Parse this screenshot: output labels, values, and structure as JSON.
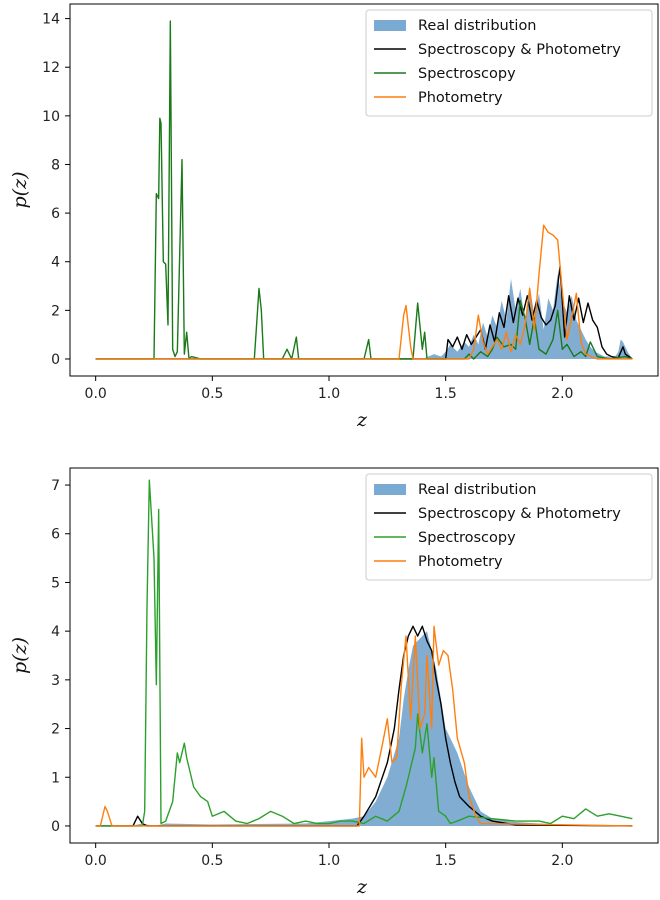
{
  "chart_data": [
    {
      "type": "line",
      "title": "",
      "xlabel": "z",
      "ylabel": "p(z)",
      "xlim": [
        -0.11,
        2.41
      ],
      "ylim": [
        -0.7,
        14.6
      ],
      "xticks": [
        0.0,
        0.5,
        1.0,
        1.5,
        2.0
      ],
      "xtick_labels": [
        "0.0",
        "0.5",
        "1.0",
        "1.5",
        "2.0"
      ],
      "yticks": [
        0,
        2,
        4,
        6,
        8,
        10,
        12,
        14
      ],
      "ytick_labels": [
        "0",
        "2",
        "4",
        "6",
        "8",
        "10",
        "12",
        "14"
      ],
      "grid": false,
      "legend_position": "top-right",
      "series": [
        {
          "name": "Real distribution",
          "kind": "fill",
          "color": "#7aa9d1",
          "x": [
            0,
            1.4,
            1.45,
            1.48,
            1.5,
            1.52,
            1.55,
            1.58,
            1.6,
            1.62,
            1.64,
            1.66,
            1.68,
            1.7,
            1.72,
            1.74,
            1.76,
            1.78,
            1.8,
            1.82,
            1.84,
            1.86,
            1.88,
            1.9,
            1.92,
            1.94,
            1.96,
            1.98,
            2.0,
            2.02,
            2.04,
            2.06,
            2.08,
            2.1,
            2.12,
            2.14,
            2.16,
            2.18,
            2.2,
            2.22,
            2.24,
            2.25,
            2.26,
            2.28,
            2.3
          ],
          "y": [
            0,
            0,
            0.2,
            0.1,
            0.3,
            0.6,
            0.3,
            0.7,
            0.5,
            1.0,
            0.6,
            1.5,
            0.9,
            1.8,
            1.3,
            2.4,
            1.6,
            3.3,
            2.0,
            2.9,
            1.5,
            3.0,
            1.8,
            2.7,
            1.2,
            2.5,
            2.0,
            3.5,
            2.4,
            1.9,
            2.6,
            1.6,
            1.2,
            0.8,
            0.5,
            0.3,
            0.2,
            0.1,
            0.1,
            0.0,
            0.3,
            0.8,
            0.7,
            0.3,
            0
          ]
        },
        {
          "name": "Spectroscopy & Photometry",
          "kind": "line",
          "color": "#000000",
          "x": [
            0,
            1.5,
            1.51,
            1.53,
            1.55,
            1.57,
            1.59,
            1.61,
            1.63,
            1.65,
            1.67,
            1.69,
            1.71,
            1.73,
            1.75,
            1.77,
            1.79,
            1.81,
            1.83,
            1.85,
            1.87,
            1.89,
            1.91,
            1.93,
            1.95,
            1.97,
            1.99,
            2.01,
            2.03,
            2.05,
            2.07,
            2.09,
            2.11,
            2.13,
            2.15,
            2.17,
            2.19,
            2.21,
            2.24,
            2.26,
            2.27,
            2.3
          ],
          "y": [
            0,
            0,
            0.8,
            0.5,
            0.9,
            0.4,
            1.0,
            0.6,
            0.9,
            1.2,
            0.4,
            1.4,
            0.7,
            1.9,
            1.3,
            2.6,
            1.5,
            2.5,
            1.8,
            2.6,
            1.6,
            2.4,
            1.7,
            1.4,
            1.6,
            2.2,
            3.8,
            0.9,
            2.6,
            1.6,
            2.5,
            1.5,
            2.3,
            1.6,
            1.3,
            0.5,
            0.2,
            0.1,
            0.05,
            0.5,
            0.2,
            0
          ]
        },
        {
          "name": "Spectroscopy",
          "kind": "line",
          "color": "#1a7a1a",
          "x": [
            0,
            0.25,
            0.26,
            0.27,
            0.275,
            0.28,
            0.29,
            0.3,
            0.31,
            0.32,
            0.33,
            0.34,
            0.35,
            0.37,
            0.38,
            0.39,
            0.4,
            0.41,
            0.45,
            0.68,
            0.7,
            0.71,
            0.72,
            0.8,
            0.82,
            0.84,
            0.86,
            0.87,
            0.88,
            1.15,
            1.17,
            1.18,
            1.36,
            1.38,
            1.4,
            1.41,
            1.42,
            1.45,
            1.58,
            1.6,
            1.62,
            1.65,
            1.68,
            1.7,
            1.72,
            1.75,
            1.78,
            1.8,
            1.82,
            1.84,
            1.86,
            1.88,
            1.9,
            1.93,
            1.96,
            1.98,
            2.0,
            2.02,
            2.05,
            2.08,
            2.1,
            2.12,
            2.15,
            2.2,
            2.27,
            2.3
          ],
          "y": [
            0,
            0,
            6.8,
            6.6,
            9.9,
            9.7,
            4.0,
            3.9,
            1.4,
            13.9,
            0.4,
            0.1,
            0.3,
            8.2,
            0.2,
            1.1,
            0,
            0.1,
            0,
            0,
            2.9,
            2.0,
            0,
            0,
            0.4,
            0,
            0.9,
            0,
            0,
            0,
            0.8,
            0,
            0,
            2.3,
            0.4,
            1.1,
            0,
            0,
            0,
            0.2,
            0,
            0.3,
            0.1,
            0.4,
            0.9,
            0.5,
            0.6,
            0.4,
            2.4,
            1.7,
            0.6,
            1.7,
            0.4,
            0.2,
            0.8,
            2.0,
            0.4,
            0.6,
            0.1,
            0.3,
            0.1,
            0.7,
            0.1,
            0,
            0.1,
            0
          ]
        },
        {
          "name": "Photometry",
          "kind": "line",
          "color": "#ff7f0e",
          "x": [
            0,
            1.3,
            1.32,
            1.33,
            1.35,
            1.36,
            1.6,
            1.62,
            1.64,
            1.66,
            1.68,
            1.7,
            1.72,
            1.74,
            1.76,
            1.78,
            1.8,
            1.82,
            1.84,
            1.86,
            1.88,
            1.9,
            1.92,
            1.94,
            1.96,
            1.98,
            2.0,
            2.02,
            2.04,
            2.06,
            2.08,
            2.1,
            2.15,
            2.3
          ],
          "y": [
            0,
            0,
            1.8,
            2.2,
            0.5,
            0,
            0,
            0.4,
            1.8,
            0.7,
            0.2,
            0.5,
            0.8,
            0.4,
            1.1,
            0.3,
            1.0,
            0.6,
            1.4,
            2.9,
            1.2,
            3.5,
            5.5,
            5.2,
            5.1,
            4.9,
            2.8,
            0.8,
            1.7,
            2.7,
            0.7,
            0.2,
            0,
            0
          ]
        }
      ]
    },
    {
      "type": "line",
      "title": "",
      "xlabel": "z",
      "ylabel": "p(z)",
      "xlim": [
        -0.11,
        2.41
      ],
      "ylim": [
        -0.35,
        7.35
      ],
      "xticks": [
        0.0,
        0.5,
        1.0,
        1.5,
        2.0
      ],
      "xtick_labels": [
        "0.0",
        "0.5",
        "1.0",
        "1.5",
        "2.0"
      ],
      "yticks": [
        0,
        1,
        2,
        3,
        4,
        5,
        6,
        7
      ],
      "ytick_labels": [
        "0",
        "1",
        "2",
        "3",
        "4",
        "5",
        "6",
        "7"
      ],
      "grid": false,
      "legend_position": "top-right",
      "series": [
        {
          "name": "Real distribution",
          "kind": "fill",
          "color": "#7aa9d1",
          "x": [
            0,
            0.15,
            0.2,
            0.25,
            0.3,
            0.5,
            0.9,
            1.0,
            1.1,
            1.15,
            1.2,
            1.25,
            1.3,
            1.32,
            1.34,
            1.36,
            1.38,
            1.4,
            1.42,
            1.44,
            1.46,
            1.48,
            1.5,
            1.52,
            1.55,
            1.6,
            1.65,
            1.7,
            1.8,
            1.9,
            2.0,
            2.3
          ],
          "y": [
            0,
            0,
            0.05,
            0.0,
            0.05,
            0.03,
            0.05,
            0.1,
            0.15,
            0.2,
            0.5,
            1.0,
            1.8,
            2.6,
            3.2,
            3.7,
            3.8,
            3.9,
            4.0,
            3.6,
            3.2,
            2.6,
            2.0,
            1.8,
            1.5,
            0.8,
            0.3,
            0.15,
            0.08,
            0.05,
            0.03,
            0
          ]
        },
        {
          "name": "Spectroscopy & Photometry",
          "kind": "line",
          "color": "#000000",
          "x": [
            0,
            0.16,
            0.18,
            0.2,
            0.22,
            1.12,
            1.15,
            1.2,
            1.25,
            1.28,
            1.3,
            1.32,
            1.34,
            1.36,
            1.38,
            1.4,
            1.42,
            1.44,
            1.46,
            1.48,
            1.5,
            1.52,
            1.54,
            1.56,
            1.6,
            1.65,
            1.7,
            1.8,
            2.3
          ],
          "y": [
            0,
            0,
            0.2,
            0.05,
            0,
            0,
            0.2,
            0.6,
            1.3,
            2.0,
            2.8,
            3.5,
            3.9,
            4.1,
            3.9,
            4.1,
            3.8,
            3.6,
            3.0,
            2.5,
            1.8,
            1.3,
            0.9,
            0.6,
            0.4,
            0.2,
            0.1,
            0.02,
            0
          ]
        },
        {
          "name": "Spectroscopy",
          "kind": "line",
          "color": "#2ca02c",
          "x": [
            0,
            0.2,
            0.21,
            0.22,
            0.23,
            0.25,
            0.26,
            0.27,
            0.28,
            0.3,
            0.33,
            0.35,
            0.36,
            0.38,
            0.39,
            0.4,
            0.42,
            0.45,
            0.48,
            0.5,
            0.55,
            0.6,
            0.65,
            0.7,
            0.75,
            0.8,
            0.85,
            0.9,
            0.95,
            1.0,
            1.05,
            1.1,
            1.15,
            1.2,
            1.25,
            1.3,
            1.33,
            1.35,
            1.37,
            1.38,
            1.4,
            1.42,
            1.44,
            1.45,
            1.47,
            1.5,
            1.52,
            1.55,
            1.6,
            1.7,
            1.8,
            1.9,
            1.95,
            2.0,
            2.05,
            2.1,
            2.15,
            2.2,
            2.25,
            2.3
          ],
          "y": [
            0,
            0,
            0.3,
            4.5,
            7.1,
            5.5,
            2.9,
            6.5,
            0.05,
            0.1,
            0.5,
            1.5,
            1.3,
            1.7,
            1.4,
            1.2,
            0.8,
            0.6,
            0.5,
            0.2,
            0.3,
            0.1,
            0.05,
            0.15,
            0.3,
            0.2,
            0.05,
            0.1,
            0.05,
            0.05,
            0.1,
            0.1,
            0.05,
            0.2,
            0.1,
            0.3,
            0.8,
            1.2,
            1.6,
            2.3,
            1.5,
            2.1,
            1.0,
            1.4,
            0.3,
            0.2,
            0.05,
            0.1,
            0.2,
            0.15,
            0.1,
            0.1,
            0.05,
            0.2,
            0.15,
            0.35,
            0.2,
            0.25,
            0.2,
            0.15
          ]
        },
        {
          "name": "Photometry",
          "kind": "line",
          "color": "#ff7f0e",
          "x": [
            0,
            0.02,
            0.04,
            0.05,
            0.07,
            1.13,
            1.14,
            1.15,
            1.17,
            1.2,
            1.23,
            1.25,
            1.27,
            1.29,
            1.31,
            1.33,
            1.35,
            1.37,
            1.39,
            1.41,
            1.42,
            1.44,
            1.45,
            1.47,
            1.49,
            1.51,
            1.53,
            1.55,
            1.58,
            1.6,
            1.63,
            1.65,
            2.3
          ],
          "y": [
            0,
            0,
            0.4,
            0.3,
            0,
            0,
            1.8,
            1.0,
            1.2,
            1.0,
            1.7,
            2.2,
            1.3,
            1.4,
            2.9,
            3.9,
            2.2,
            3.9,
            2.0,
            2.3,
            3.5,
            2.0,
            4.1,
            3.3,
            3.6,
            3.5,
            2.8,
            1.8,
            1.3,
            0.6,
            0.2,
            0.05,
            0
          ]
        }
      ]
    }
  ]
}
